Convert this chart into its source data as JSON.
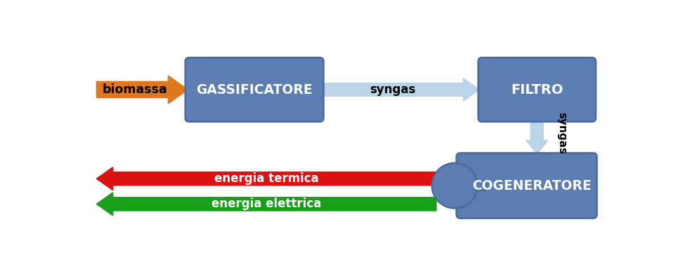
{
  "box_color": "#5b7db1",
  "box_edge_color": "#4a6a9e",
  "syn_color": "#b8d4e8",
  "bio_color": "#e07820",
  "ter_color": "#dd1111",
  "ele_color": "#18a018",
  "text_white": "#ffffff",
  "text_black": "#111111",
  "gassificatore_label": "GASSIFICATORE",
  "filtro_label": "FILTRO",
  "cogeneratore_label": "COGENERATORE",
  "biomassa_label": "biomassa",
  "syngas_label": "syngas",
  "termica_label": "energia termica",
  "elettrica_label": "energia elettrica",
  "figw": 9.75,
  "figh": 3.77,
  "dpi": 100
}
